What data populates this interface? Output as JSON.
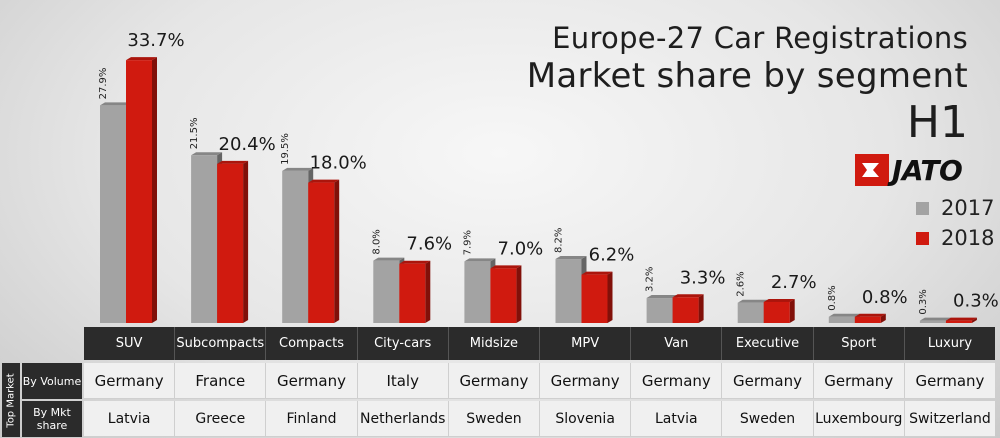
{
  "title": {
    "line1": "Europe-27 Car Registrations",
    "line2": "Market share by segment",
    "line3": "H1"
  },
  "brand": "JATO",
  "colors": {
    "y2017": "#a3a3a3",
    "y2018": "#d01a0f"
  },
  "legend": [
    {
      "label": "2017",
      "color": "#a3a3a3"
    },
    {
      "label": "2018",
      "color": "#d01a0f"
    }
  ],
  "chart_data": {
    "type": "bar",
    "title": "Europe-27 Car Registrations Market share by segment H1",
    "categories": [
      "SUV",
      "Subcompacts",
      "Compacts",
      "City-cars",
      "Midsize",
      "MPV",
      "Van",
      "Executive",
      "Sport",
      "Luxury"
    ],
    "series": [
      {
        "name": "2017",
        "values": [
          27.9,
          21.5,
          19.5,
          8.0,
          7.9,
          8.2,
          3.2,
          2.6,
          0.8,
          0.3
        ],
        "labels": [
          "27.9%",
          "21.5%",
          "19.5%",
          "8.0%",
          "7.9%",
          "8.2%",
          "3.2%",
          "2.6%",
          "0.8%",
          "0.3%"
        ]
      },
      {
        "name": "2018",
        "values": [
          33.7,
          20.4,
          18.0,
          7.6,
          7.0,
          6.2,
          3.3,
          2.7,
          0.8,
          0.3
        ],
        "labels": [
          "33.7%",
          "20.4%",
          "18.0%",
          "7.6%",
          "7.0%",
          "6.2%",
          "3.3%",
          "2.7%",
          "0.8%",
          "0.3%"
        ]
      }
    ],
    "xlabel": "",
    "ylabel": "",
    "ylim": [
      0,
      35
    ],
    "grid": false,
    "legend_position": "right"
  },
  "table": {
    "side_label": "Top Market",
    "rows": [
      {
        "label": "By Volume",
        "values": [
          "Germany",
          "France",
          "Germany",
          "Italy",
          "Germany",
          "Germany",
          "Germany",
          "Germany",
          "Germany",
          "Germany"
        ]
      },
      {
        "label": "By Mkt share",
        "values": [
          "Latvia",
          "Greece",
          "Finland",
          "Netherlands",
          "Sweden",
          "Slovenia",
          "Latvia",
          "Sweden",
          "Luxembourg",
          "Switzerland"
        ]
      }
    ]
  }
}
